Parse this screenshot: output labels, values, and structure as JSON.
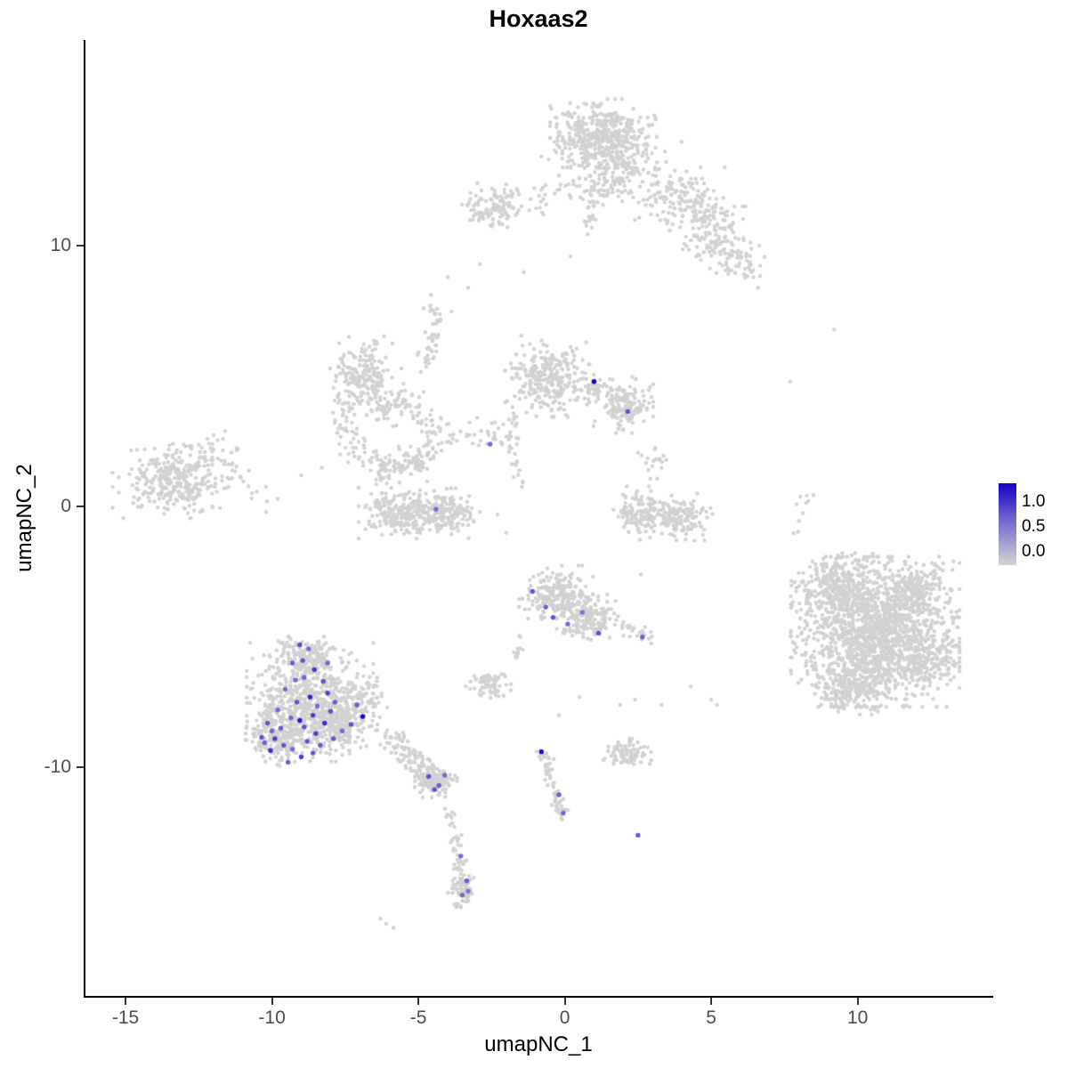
{
  "chart_data": {
    "type": "scatter",
    "title": "Hoxaas2",
    "xlabel": "umapNC_1",
    "ylabel": "umapNC_2",
    "x_axis": {
      "min": -16.4,
      "max": 14.6,
      "ticks": [
        -15,
        -10,
        -5,
        0,
        5,
        10
      ]
    },
    "y_axis": {
      "min": -18.8,
      "max": 17.9,
      "ticks": [
        10,
        0,
        -10
      ]
    },
    "legend": {
      "labels": [
        "1.0",
        "0.5",
        "0.0"
      ],
      "low_color": "#d3d3d3",
      "mid_color": "#7369cd",
      "high_color": "#1400c8"
    },
    "point_color": "#d2d2d2",
    "background_clusters": [
      [
        1.3,
        14.2,
        1.5,
        1.2,
        420
      ],
      [
        1.6,
        12.9,
        2.0,
        1.2,
        180
      ],
      [
        3.9,
        11.7,
        1.4,
        1.1,
        150
      ],
      [
        5.2,
        10.2,
        1.2,
        1.1,
        130
      ],
      [
        6.1,
        9.3,
        0.6,
        0.6,
        35
      ],
      [
        -2.4,
        11.5,
        1.0,
        0.8,
        120
      ],
      [
        -6.9,
        5.1,
        1.1,
        1.2,
        180
      ],
      [
        -6.1,
        3.9,
        0.8,
        0.8,
        60
      ],
      [
        -0.6,
        5.0,
        1.2,
        1.3,
        280
      ],
      [
        0.9,
        4.6,
        0.6,
        0.5,
        40
      ],
      [
        2.0,
        3.9,
        0.85,
        0.9,
        160
      ],
      [
        -13.4,
        1.0,
        1.7,
        1.2,
        330
      ],
      [
        -11.9,
        2.1,
        0.7,
        0.6,
        25
      ],
      [
        -5.6,
        -0.35,
        1.2,
        0.9,
        200
      ],
      [
        -4.1,
        -0.25,
        1.05,
        0.8,
        170
      ],
      [
        2.6,
        -0.3,
        0.9,
        0.9,
        130
      ],
      [
        3.9,
        -0.45,
        0.95,
        0.8,
        140
      ],
      [
        3.1,
        1.8,
        0.5,
        0.6,
        18
      ],
      [
        10.6,
        -4.8,
        2.4,
        2.4,
        1400
      ],
      [
        9.3,
        -3.1,
        1.3,
        1.1,
        280
      ],
      [
        11.9,
        -3.3,
        1.1,
        1.0,
        240
      ],
      [
        9.9,
        -6.9,
        1.4,
        0.9,
        200
      ],
      [
        12.4,
        -5.9,
        0.9,
        0.9,
        120
      ],
      [
        -8.7,
        -7.5,
        1.8,
        1.9,
        600
      ],
      [
        -9.7,
        -8.8,
        1.0,
        0.95,
        220
      ],
      [
        -7.6,
        -8.4,
        1.0,
        0.9,
        160
      ],
      [
        -8.8,
        -5.7,
        1.2,
        0.6,
        130
      ],
      [
        -6.9,
        -7.2,
        0.7,
        0.9,
        70
      ],
      [
        -4.4,
        -10.55,
        0.6,
        0.5,
        130
      ],
      [
        -3.45,
        -14.65,
        0.45,
        0.6,
        80
      ],
      [
        -0.3,
        -3.4,
        1.05,
        0.95,
        220
      ],
      [
        0.8,
        -4.2,
        1.0,
        0.8,
        170
      ],
      [
        -2.6,
        -6.8,
        0.65,
        0.45,
        70
      ],
      [
        2.2,
        -9.5,
        0.8,
        0.5,
        85
      ]
    ],
    "chains": [
      {
        "pts": [
          [
            -7.4,
            4.2
          ],
          [
            -7.6,
            3.1
          ],
          [
            -7.1,
            2.1
          ],
          [
            -6.1,
            1.5
          ],
          [
            -5.1,
            1.7
          ],
          [
            -4.4,
            2.4
          ],
          [
            -4.6,
            3.3
          ],
          [
            -5.3,
            4.1
          ]
        ],
        "jitter": 0.25,
        "n": 190
      },
      {
        "pts": [
          [
            -4.9,
            5.4
          ],
          [
            -4.5,
            6.3
          ],
          [
            -4.35,
            7.1
          ],
          [
            -4.5,
            7.8
          ]
        ],
        "jitter": 0.15,
        "n": 50
      },
      {
        "pts": [
          [
            -3.7,
            2.7
          ],
          [
            -2.9,
            2.5
          ],
          [
            -2.2,
            2.7
          ],
          [
            -1.9,
            3.2
          ]
        ],
        "jitter": 0.3,
        "n": 35
      },
      {
        "pts": [
          [
            -1.7,
            3.6
          ],
          [
            -1.85,
            2.5
          ],
          [
            -1.6,
            1.3
          ],
          [
            -1.5,
            0.4
          ]
        ],
        "jitter": 0.12,
        "n": 30
      },
      {
        "pts": [
          [
            1.15,
            12.5
          ],
          [
            0.95,
            11.5
          ],
          [
            0.8,
            10.7
          ]
        ],
        "jitter": 0.15,
        "n": 28
      },
      {
        "pts": [
          [
            -1.4,
            11.6
          ],
          [
            -0.5,
            11.9
          ],
          [
            0.3,
            12.3
          ]
        ],
        "jitter": 0.25,
        "n": 24
      },
      {
        "pts": [
          [
            -6.5,
            0.6
          ],
          [
            -6.0,
            1.3
          ],
          [
            -5.3,
            1.6
          ],
          [
            -4.6,
            1.4
          ]
        ],
        "jitter": 0.2,
        "n": 50
      },
      {
        "pts": [
          [
            -6.3,
            -8.5
          ],
          [
            -5.6,
            -9.2
          ],
          [
            -5.0,
            -9.9
          ],
          [
            -4.6,
            -10.3
          ]
        ],
        "jitter": 0.22,
        "n": 110
      },
      {
        "pts": [
          [
            -4.1,
            -11.3
          ],
          [
            -3.85,
            -12.3
          ],
          [
            -3.6,
            -13.3
          ],
          [
            -3.5,
            -14.1
          ]
        ],
        "jitter": 0.13,
        "n": 40
      },
      {
        "pts": [
          [
            -0.75,
            -9.4
          ],
          [
            -0.5,
            -10.3
          ],
          [
            -0.25,
            -11.1
          ],
          [
            -0.1,
            -11.9
          ]
        ],
        "jitter": 0.12,
        "n": 65
      },
      {
        "pts": [
          [
            1.7,
            -4.5
          ],
          [
            2.4,
            -4.8
          ],
          [
            3.0,
            -5.0
          ]
        ],
        "jitter": 0.15,
        "n": 30
      },
      {
        "pts": [
          [
            -1.5,
            -5.1
          ],
          [
            -1.65,
            -5.8
          ]
        ],
        "jitter": 0.1,
        "n": 12
      },
      {
        "pts": [
          [
            -11.5,
            1.5
          ],
          [
            -10.9,
            1.0
          ],
          [
            -10.5,
            0.5
          ]
        ],
        "jitter": 0.25,
        "n": 16
      },
      {
        "pts": [
          [
            8.1,
            0.6
          ],
          [
            8.15,
            -0.3
          ],
          [
            8.0,
            -1.2
          ]
        ],
        "jitter": 0.15,
        "n": 10
      }
    ],
    "single_points": [
      [
        -2.9,
        9.3
      ],
      [
        -3.3,
        8.4
      ],
      [
        -4.0,
        8.8
      ],
      [
        -1.4,
        9.0
      ],
      [
        0.2,
        9.6
      ],
      [
        7.7,
        4.8
      ],
      [
        9.2,
        6.8
      ],
      [
        6.6,
        8.4
      ],
      [
        5.0,
        -7.4
      ],
      [
        5.2,
        -7.6
      ],
      [
        3.3,
        -7.6
      ],
      [
        1.9,
        -7.6
      ],
      [
        2.4,
        -7.4
      ],
      [
        4.3,
        -6.9
      ],
      [
        0.5,
        -7.3
      ],
      [
        -0.2,
        -8.0
      ],
      [
        -2.0,
        -1.0
      ],
      [
        -2.3,
        -0.3
      ],
      [
        -12.2,
        2.6
      ],
      [
        -11.6,
        2.9
      ],
      [
        -6.1,
        -16.0
      ],
      [
        -5.85,
        -16.15
      ],
      [
        -6.3,
        -15.8
      ],
      [
        -8.3,
        1.5
      ],
      [
        -9.0,
        1.2
      ],
      [
        -10.2,
        -0.2
      ],
      [
        -9.8,
        0.3
      ],
      [
        2.6,
        -2.6
      ]
    ],
    "expressing_cells": [
      [
        -9.05,
        -5.3,
        0.65
      ],
      [
        -8.75,
        -5.45,
        0.5
      ],
      [
        -9.3,
        -6.0,
        0.55
      ],
      [
        -8.55,
        -6.25,
        0.75
      ],
      [
        -8.9,
        -6.55,
        0.5
      ],
      [
        -8.25,
        -6.7,
        0.6
      ],
      [
        -9.55,
        -7.0,
        0.5
      ],
      [
        -8.1,
        -7.15,
        0.7
      ],
      [
        -8.7,
        -7.3,
        0.85
      ],
      [
        -9.15,
        -7.5,
        0.6
      ],
      [
        -8.45,
        -7.65,
        0.5
      ],
      [
        -8.0,
        -7.85,
        0.6
      ],
      [
        -8.6,
        -8.0,
        0.7
      ],
      [
        -9.35,
        -8.1,
        0.5
      ],
      [
        -6.9,
        -8.05,
        1.0
      ],
      [
        -8.2,
        -8.3,
        0.8
      ],
      [
        -8.9,
        -8.45,
        0.6
      ],
      [
        -9.7,
        -8.5,
        0.55
      ],
      [
        -8.5,
        -8.7,
        0.7
      ],
      [
        -10.15,
        -8.3,
        0.6
      ],
      [
        -10.0,
        -8.6,
        0.5
      ],
      [
        -9.9,
        -8.9,
        0.7
      ],
      [
        -10.25,
        -9.05,
        0.55
      ],
      [
        -9.6,
        -9.15,
        0.6
      ],
      [
        -10.05,
        -9.35,
        0.8
      ],
      [
        -9.3,
        -9.3,
        0.5
      ],
      [
        -8.8,
        -9.0,
        0.6
      ],
      [
        -8.35,
        -9.15,
        0.55
      ],
      [
        -7.9,
        -8.9,
        0.6
      ],
      [
        -9.0,
        -9.6,
        0.7
      ],
      [
        -9.45,
        -9.8,
        0.55
      ],
      [
        -8.6,
        -9.45,
        0.6
      ],
      [
        -7.6,
        -8.6,
        0.5
      ],
      [
        -7.3,
        -8.35,
        0.6
      ],
      [
        -8.1,
        -6.0,
        0.5
      ],
      [
        -8.95,
        -5.9,
        0.6
      ],
      [
        -9.2,
        -6.65,
        0.5
      ],
      [
        -7.85,
        -7.5,
        0.55
      ],
      [
        -10.35,
        -8.85,
        0.6
      ],
      [
        -9.05,
        -8.2,
        0.9
      ],
      [
        -9.8,
        -7.8,
        0.5
      ],
      [
        -7.1,
        -7.6,
        0.55
      ],
      [
        -4.65,
        -10.35,
        0.6
      ],
      [
        -4.3,
        -10.7,
        0.55
      ],
      [
        -4.1,
        -10.3,
        0.5
      ],
      [
        -4.45,
        -10.85,
        0.6
      ],
      [
        -3.55,
        -13.4,
        0.5
      ],
      [
        -3.35,
        -14.35,
        0.55
      ],
      [
        -3.5,
        -14.9,
        0.5
      ],
      [
        -3.3,
        -14.75,
        0.45
      ],
      [
        -0.8,
        -9.4,
        1.0
      ],
      [
        -0.2,
        -11.05,
        0.55
      ],
      [
        -0.05,
        -11.75,
        0.5
      ],
      [
        -1.1,
        -3.25,
        0.6
      ],
      [
        -0.65,
        -3.85,
        0.55
      ],
      [
        -0.4,
        -4.25,
        0.6
      ],
      [
        0.1,
        -4.5,
        0.5
      ],
      [
        0.6,
        -4.05,
        0.45
      ],
      [
        1.15,
        -4.85,
        0.6
      ],
      [
        2.65,
        -5.0,
        0.55
      ],
      [
        1.0,
        4.8,
        1.0
      ],
      [
        2.15,
        3.65,
        0.6
      ],
      [
        -2.55,
        2.4,
        0.5
      ],
      [
        -4.4,
        -0.1,
        0.5
      ],
      [
        2.5,
        -12.6,
        0.55
      ]
    ]
  }
}
